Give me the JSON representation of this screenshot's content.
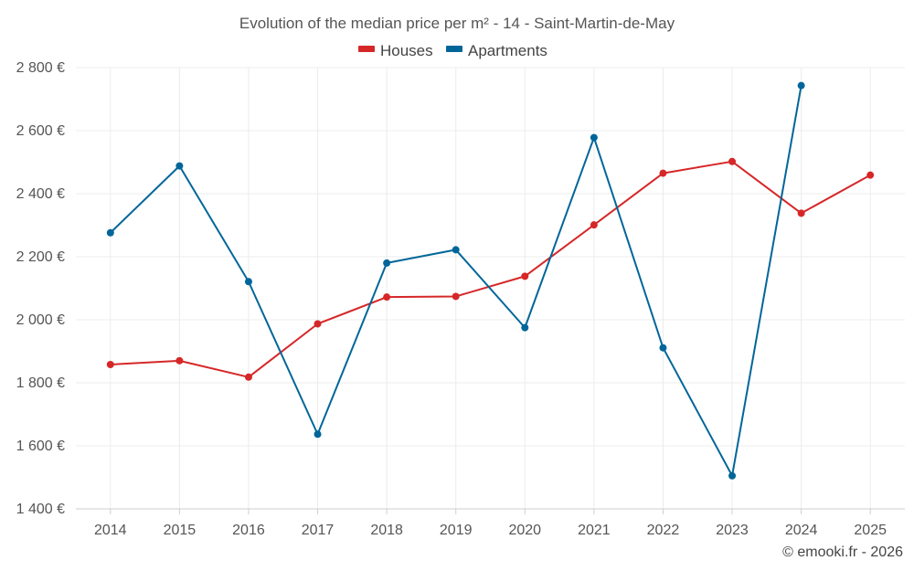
{
  "chart_data": {
    "type": "line",
    "title": "Evolution of the median price per m² - 14 - Saint-Martin-de-May",
    "categories": [
      "2014",
      "2015",
      "2016",
      "2017",
      "2018",
      "2019",
      "2020",
      "2021",
      "2022",
      "2023",
      "2024",
      "2025"
    ],
    "series": [
      {
        "name": "Houses",
        "color": "#d62728",
        "values": [
          1858,
          1870,
          1818,
          1987,
          2072,
          2074,
          2138,
          2301,
          2465,
          2502,
          2338,
          2459
        ]
      },
      {
        "name": "Apartments",
        "color": "#006699",
        "values": [
          2276,
          2488,
          2121,
          1637,
          2180,
          2222,
          1975,
          2578,
          1911,
          1505,
          2743,
          null
        ]
      }
    ],
    "ylim": [
      1400,
      2800
    ],
    "yticks": [
      1400,
      1600,
      1800,
      2000,
      2200,
      2400,
      2600,
      2800
    ],
    "ytick_labels": [
      "1 400 €",
      "1 600 €",
      "1 800 €",
      "2 000 €",
      "2 200 €",
      "2 400 €",
      "2 600 €",
      "2 800 €"
    ],
    "legend_position": "top-center",
    "grid": true
  },
  "footer": {
    "credit": "© emooki.fr - 2026"
  }
}
